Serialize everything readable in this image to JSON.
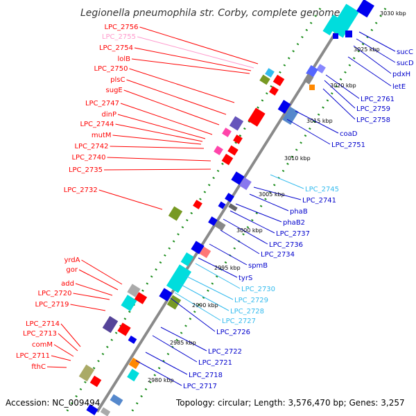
{
  "title": "Legionella pneumophila str. Corby, complete genome",
  "accession": "Accession: NC_009494",
  "summary": "Topology: circular; Length: 3,576,470 bp; Genes: 3,257",
  "kbp_ticks": [
    "2980 kbp",
    "2985 kbp",
    "2990 kbp",
    "2995 kbp",
    "3000 kbp",
    "3005 kbp",
    "3010 kbp",
    "3015 kbp",
    "3020 kbp",
    "3025 kbp",
    "3030 kbp"
  ],
  "left_labels": [
    {
      "text": "LPC_2756",
      "color": "#ff0000"
    },
    {
      "text": "LPC_2755",
      "color": "#ff99cc"
    },
    {
      "text": "LPC_2754",
      "color": "#ff0000"
    },
    {
      "text": "lolB",
      "color": "#ff0000"
    },
    {
      "text": "LPC_2750",
      "color": "#ff0000"
    },
    {
      "text": "plsC",
      "color": "#ff0000"
    },
    {
      "text": "sugE",
      "color": "#ff0000"
    },
    {
      "text": "LPC_2747",
      "color": "#ff0000"
    },
    {
      "text": "dinP",
      "color": "#ff0000"
    },
    {
      "text": "LPC_2744",
      "color": "#ff0000"
    },
    {
      "text": "mutM",
      "color": "#ff0000"
    },
    {
      "text": "LPC_2742",
      "color": "#ff0000"
    },
    {
      "text": "LPC_2740",
      "color": "#ff0000"
    },
    {
      "text": "LPC_2735",
      "color": "#ff0000"
    },
    {
      "text": "LPC_2732",
      "color": "#ff0000"
    },
    {
      "text": "yrdA",
      "color": "#ff0000"
    },
    {
      "text": "gor",
      "color": "#ff0000"
    },
    {
      "text": "add",
      "color": "#ff0000"
    },
    {
      "text": "LPC_2720",
      "color": "#ff0000"
    },
    {
      "text": "LPC_2719",
      "color": "#ff0000"
    },
    {
      "text": "LPC_2714",
      "color": "#ff0000"
    },
    {
      "text": "LPC_2713",
      "color": "#ff0000"
    },
    {
      "text": "comM",
      "color": "#ff0000"
    },
    {
      "text": "LPC_2711",
      "color": "#ff0000"
    },
    {
      "text": "fthC",
      "color": "#ff0000"
    }
  ],
  "right_labels": [
    {
      "text": "sucC",
      "color": "#0000cc"
    },
    {
      "text": "sucD",
      "color": "#0000cc"
    },
    {
      "text": "pdxH",
      "color": "#0000cc"
    },
    {
      "text": "letE",
      "color": "#0000cc"
    },
    {
      "text": "LPC_2761",
      "color": "#0000cc"
    },
    {
      "text": "LPC_2759",
      "color": "#0000cc"
    },
    {
      "text": "LPC_2758",
      "color": "#0000cc"
    },
    {
      "text": "coaD",
      "color": "#0000cc"
    },
    {
      "text": "LPC_2751",
      "color": "#0000cc"
    },
    {
      "text": "LPC_2745",
      "color": "#33bbee"
    },
    {
      "text": "LPC_2741",
      "color": "#0000cc"
    },
    {
      "text": "phaB",
      "color": "#0000cc"
    },
    {
      "text": "phaB2",
      "color": "#0000cc"
    },
    {
      "text": "LPC_2737",
      "color": "#0000cc"
    },
    {
      "text": "LPC_2736",
      "color": "#0000cc"
    },
    {
      "text": "LPC_2734",
      "color": "#0000cc"
    },
    {
      "text": "spmB",
      "color": "#0000cc"
    },
    {
      "text": "tyrS",
      "color": "#0000cc"
    },
    {
      "text": "LPC_2730",
      "color": "#33bbee"
    },
    {
      "text": "LPC_2729",
      "color": "#33bbee"
    },
    {
      "text": "LPC_2728",
      "color": "#33bbee"
    },
    {
      "text": "LPC_2727",
      "color": "#33bbee"
    },
    {
      "text": "LPC_2726",
      "color": "#0000cc"
    },
    {
      "text": "LPC_2722",
      "color": "#0000cc"
    },
    {
      "text": "LPC_2721",
      "color": "#0000cc"
    },
    {
      "text": "LPC_2718",
      "color": "#0000cc"
    },
    {
      "text": "LPC_2717",
      "color": "#0000cc"
    }
  ],
  "colors": {
    "backbone": "#8a8a8a",
    "dots": "#1a8c1a",
    "forward_gene": "#ff0000",
    "reverse_gene": "#0000ee",
    "cyan_gene": "#00dddd"
  }
}
